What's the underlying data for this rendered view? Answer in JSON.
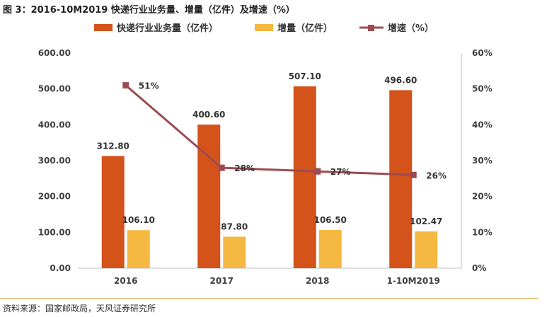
{
  "header": {
    "title": "图 3：2016-10M2019 快递行业业务量、增量（亿件）及增速（%）"
  },
  "footer": {
    "source": "资料来源：国家邮政局，天风证券研究所"
  },
  "colors": {
    "volume": "#d4531a",
    "increment": "#f5b840",
    "growth": "#9e4a52",
    "axis": "#bfbfbf",
    "footer_rule": "#d9a441"
  },
  "chart_data": {
    "type": "bar",
    "title": "2016-10M2019 快递行业业务量、增量（亿件）及增速（%）",
    "categories": [
      "2016",
      "2017",
      "2018",
      "1-10M2019"
    ],
    "series": [
      {
        "name": "快递行业业务量（亿件）",
        "type": "bar",
        "axis": "left",
        "values": [
          312.8,
          400.6,
          507.1,
          496.6
        ],
        "labels": [
          "312.80",
          "400.60",
          "507.10",
          "496.60"
        ]
      },
      {
        "name": "增量（亿件）",
        "type": "bar",
        "axis": "left",
        "values": [
          106.1,
          87.8,
          106.5,
          102.47
        ],
        "labels": [
          "106.10",
          "87.80",
          "106.50",
          "102.47"
        ]
      },
      {
        "name": "增速（%）",
        "type": "line",
        "axis": "right",
        "values": [
          51,
          28,
          27,
          26
        ],
        "labels": [
          "51%",
          "28%",
          "27%",
          "26%"
        ]
      }
    ],
    "y_left": {
      "min": 0,
      "max": 600,
      "ticks": [
        "0.00",
        "100.00",
        "200.00",
        "300.00",
        "400.00",
        "500.00",
        "600.00"
      ]
    },
    "y_right": {
      "min": 0,
      "max": 60,
      "ticks": [
        "0%",
        "10%",
        "20%",
        "30%",
        "40%",
        "50%",
        "60%"
      ]
    },
    "legend_position": "top"
  }
}
